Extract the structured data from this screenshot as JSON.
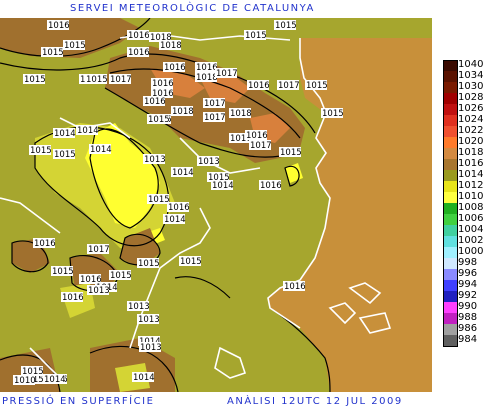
{
  "header": {
    "title": "SERVEI METEOROLÒGIC DE CATALUNYA",
    "footer_left": "PRESSIÓ EN SUPERFÍCIE",
    "footer_right": "ANÀLISI 12UTC 12 JUL 2009"
  },
  "legend": {
    "levels": [
      "1040",
      "1034",
      "1030",
      "1028",
      "1026",
      "1024",
      "1022",
      "1020",
      "1018",
      "1016",
      "1014",
      "1012",
      "1010",
      "1008",
      "1006",
      "1004",
      "1002",
      "1000",
      "998",
      "996",
      "994",
      "992",
      "990",
      "988",
      "986",
      "984"
    ],
    "colors": [
      "#3a0a00",
      "#5a1200",
      "#7a1a00",
      "#a00000",
      "#c01010",
      "#e03020",
      "#f05030",
      "#ff7a2a",
      "#d48a40",
      "#a8762e",
      "#9a9a1e",
      "#e8e41a",
      "#ffff40",
      "#20b020",
      "#40d040",
      "#40d0a0",
      "#60e0e0",
      "#a0f0ff",
      "#d0e8ff",
      "#8a8aff",
      "#4040ff",
      "#2020c0",
      "#ff40ff",
      "#c020c0",
      "#a0a0a0",
      "#606060"
    ]
  },
  "map_colors": {
    "sea_1016": "#c8903a",
    "land_1015": "#a6a62e",
    "low_1014": "#d4d434",
    "low_1013": "#ffff30",
    "high_1017": "#a0702e",
    "high_1018": "#d8803c"
  },
  "isobar_labels": [
    "1016",
    "1015",
    "1015",
    "1016",
    "1016",
    "1018",
    "1018",
    "1015",
    "1015",
    "1016",
    "1016",
    "1018",
    "1017",
    "1016",
    "1015",
    "1015",
    "1015",
    "1017",
    "1016",
    "1016",
    "1017",
    "1015",
    "1015",
    "1016",
    "1015",
    "1018",
    "1017",
    "1017",
    "1018",
    "1015",
    "1014",
    "1014",
    "1015",
    "1014",
    "1015",
    "1016",
    "1013",
    "1016",
    "1017",
    "1015",
    "1013",
    "1015",
    "1016",
    "1014",
    "1014",
    "1015",
    "1016",
    "1014",
    "1016",
    "1017",
    "1015",
    "1015",
    "1015",
    "1015",
    "1016",
    "1014",
    "1013",
    "1013",
    "1016",
    "1013",
    "1014",
    "1015",
    "1016",
    "1014",
    "1014",
    "1015",
    "1010",
    "1016",
    "1013"
  ]
}
